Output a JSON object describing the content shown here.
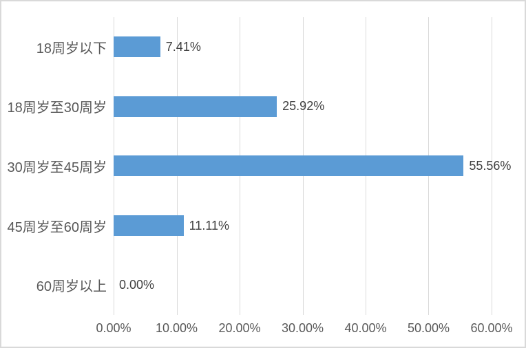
{
  "chart_data": {
    "type": "bar",
    "orientation": "horizontal",
    "title": "",
    "xlabel": "",
    "ylabel": "",
    "categories": [
      "18周岁以下",
      "18周岁至30周岁",
      "30周岁至45周岁",
      "45周岁至60周岁",
      "60周岁以上"
    ],
    "values": [
      7.41,
      25.92,
      55.56,
      11.11,
      0.0
    ],
    "value_labels": [
      "7.41%",
      "25.92%",
      "55.56%",
      "11.11%",
      "0.00%"
    ],
    "x_tick_labels": [
      "0.00%",
      "10.00%",
      "20.00%",
      "30.00%",
      "40.00%",
      "50.00%",
      "60.00%"
    ],
    "xlim": [
      0,
      60
    ],
    "grid": "vertical-major-gridlines",
    "legend": "none",
    "bar_color": "#5b9bd5",
    "gridline_color": "#d9d9d9",
    "label_color": "#595959"
  }
}
